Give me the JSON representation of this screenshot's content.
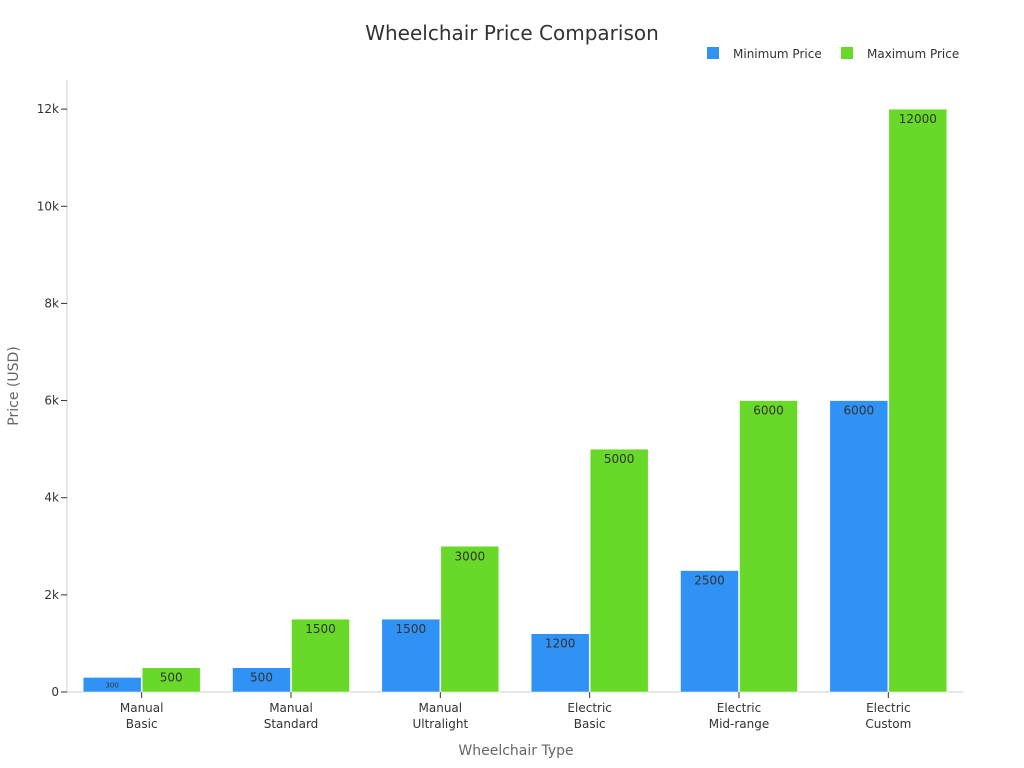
{
  "chart_data": {
    "type": "bar",
    "title": "Wheelchair Price Comparison",
    "xlabel": "Wheelchair Type",
    "ylabel": "Price (USD)",
    "categories": [
      [
        "Manual",
        "Basic"
      ],
      [
        "Manual",
        "Standard"
      ],
      [
        "Manual",
        "Ultralight"
      ],
      [
        "Electric",
        "Basic"
      ],
      [
        "Electric",
        "Mid-range"
      ],
      [
        "Electric",
        "Custom"
      ]
    ],
    "series": [
      {
        "name": "Minimum Price",
        "color": "#3092f5",
        "values": [
          300,
          500,
          1500,
          1200,
          2500,
          6000
        ]
      },
      {
        "name": "Maximum Price",
        "color": "#68d928",
        "values": [
          500,
          1500,
          3000,
          5000,
          6000,
          12000
        ]
      }
    ],
    "ylim": [
      0,
      12600
    ],
    "yticks": [
      0,
      2000,
      4000,
      6000,
      8000,
      10000,
      12000
    ],
    "ytick_labels": [
      "0",
      "2k",
      "4k",
      "6k",
      "8k",
      "10k",
      "12k"
    ],
    "legend_position": "top-right",
    "grid": false
  }
}
